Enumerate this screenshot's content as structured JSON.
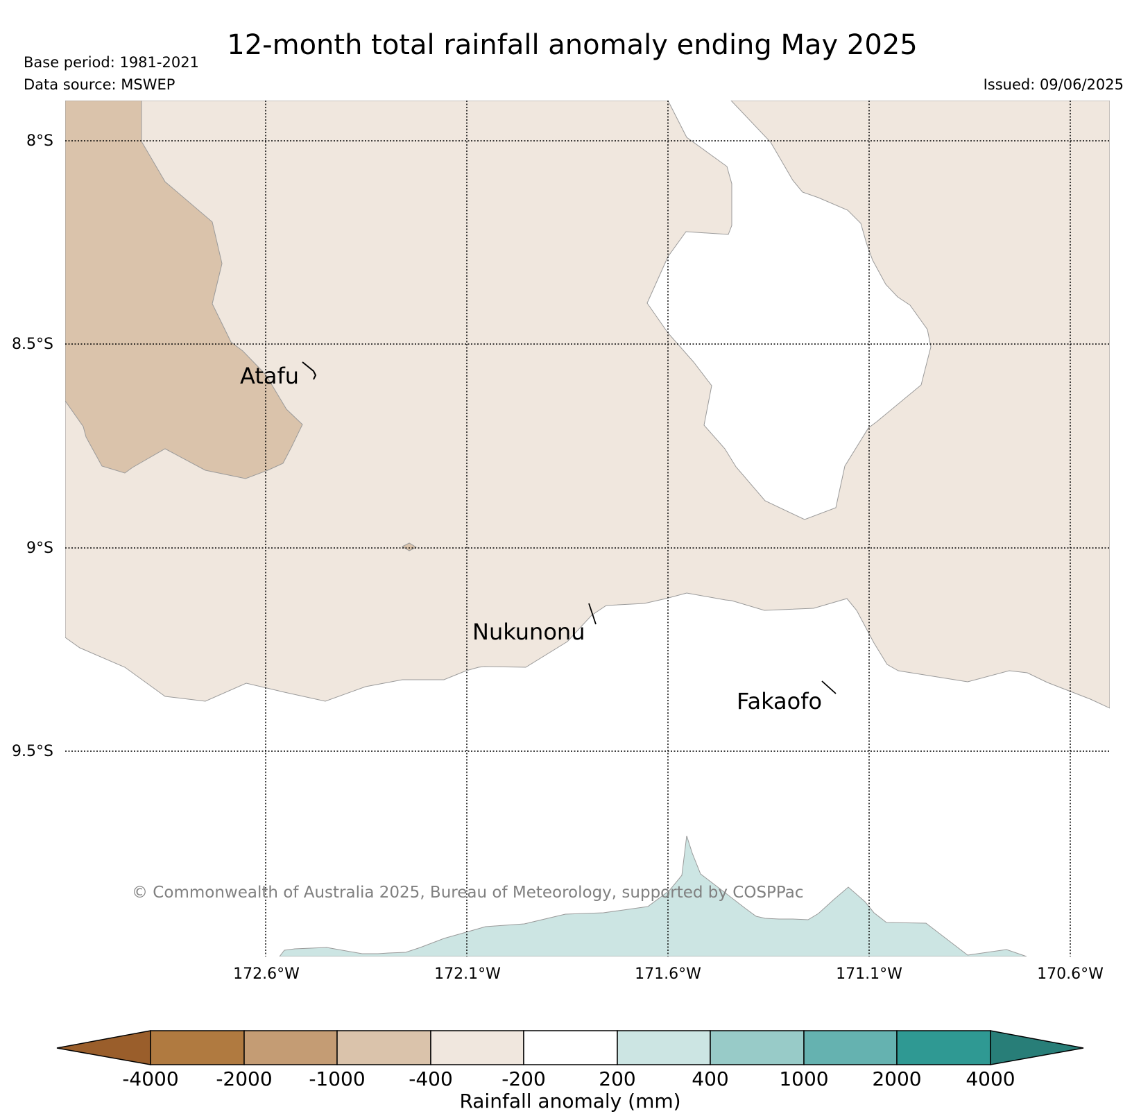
{
  "title": "12-month total rainfall anomaly ending May 2025",
  "meta": {
    "base_period": "Base period: 1981-2021",
    "data_source": "Data source: MSWEP",
    "issued": "Issued: 09/06/2025"
  },
  "map": {
    "lat_labels": [
      "8°S",
      "8.5°S",
      "9°S",
      "9.5°S"
    ],
    "lon_labels": [
      "172.6°W",
      "172.1°W",
      "171.6°W",
      "171.1°W",
      "170.6°W"
    ],
    "places": [
      {
        "name": "Atafu"
      },
      {
        "name": "Nukunonu"
      },
      {
        "name": "Fakaofo"
      }
    ],
    "copyright": "© Commonwealth of Australia 2025, Bureau of Meteorology, supported by COSPPac"
  },
  "colorbar": {
    "label": "Rainfall anomaly (mm)",
    "ticks": [
      "-4000",
      "-2000",
      "-1000",
      "-400",
      "-200",
      "200",
      "400",
      "1000",
      "2000",
      "4000"
    ],
    "colors": [
      "#9a5e2b",
      "#b07a40",
      "#c49c74",
      "#dac3ab",
      "#f0e7de",
      "#ffffff",
      "#cce5e3",
      "#98cbc8",
      "#65b2b0",
      "#2f9993",
      "#287e78"
    ]
  }
}
